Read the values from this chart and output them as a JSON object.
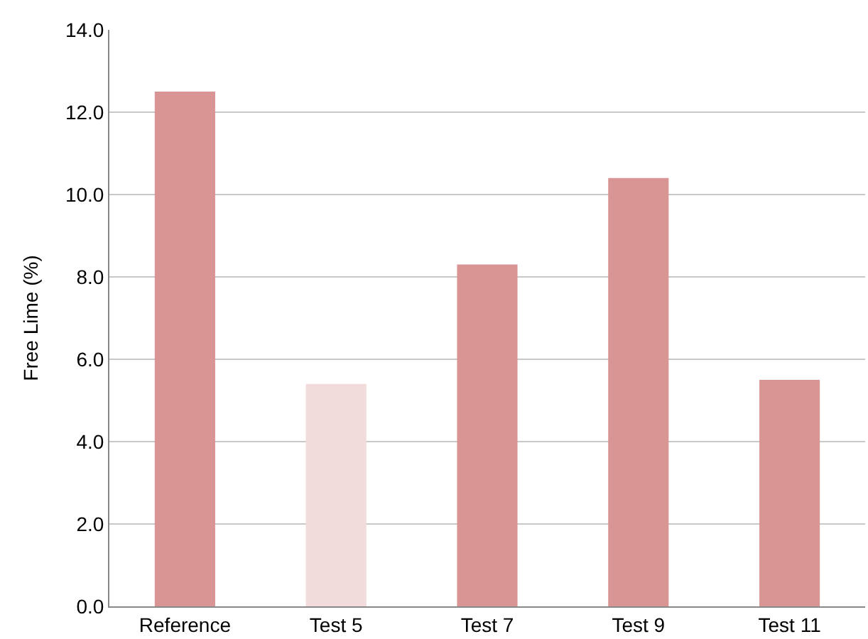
{
  "chart_data": {
    "type": "bar",
    "ylabel": "Free Lime (%)",
    "categories": [
      "Reference",
      "Test 5",
      "Test 7",
      "Test 9",
      "Test 11"
    ],
    "values": [
      12.5,
      5.4,
      8.3,
      10.4,
      5.5
    ],
    "colors": [
      "#d99594",
      "#f2dbdb",
      "#d99594",
      "#d99594",
      "#d99594"
    ],
    "ylim": [
      0,
      14
    ],
    "yticks": [
      {
        "value": 0,
        "label": "0.0"
      },
      {
        "value": 2,
        "label": "2.0"
      },
      {
        "value": 4,
        "label": "4.0"
      },
      {
        "value": 6,
        "label": "6.0"
      },
      {
        "value": 8,
        "label": "8.0"
      },
      {
        "value": 10,
        "label": "10.0"
      },
      {
        "value": 12,
        "label": "12.0"
      },
      {
        "value": 14,
        "label": "14.0"
      }
    ],
    "grid": "y",
    "legend": false
  }
}
